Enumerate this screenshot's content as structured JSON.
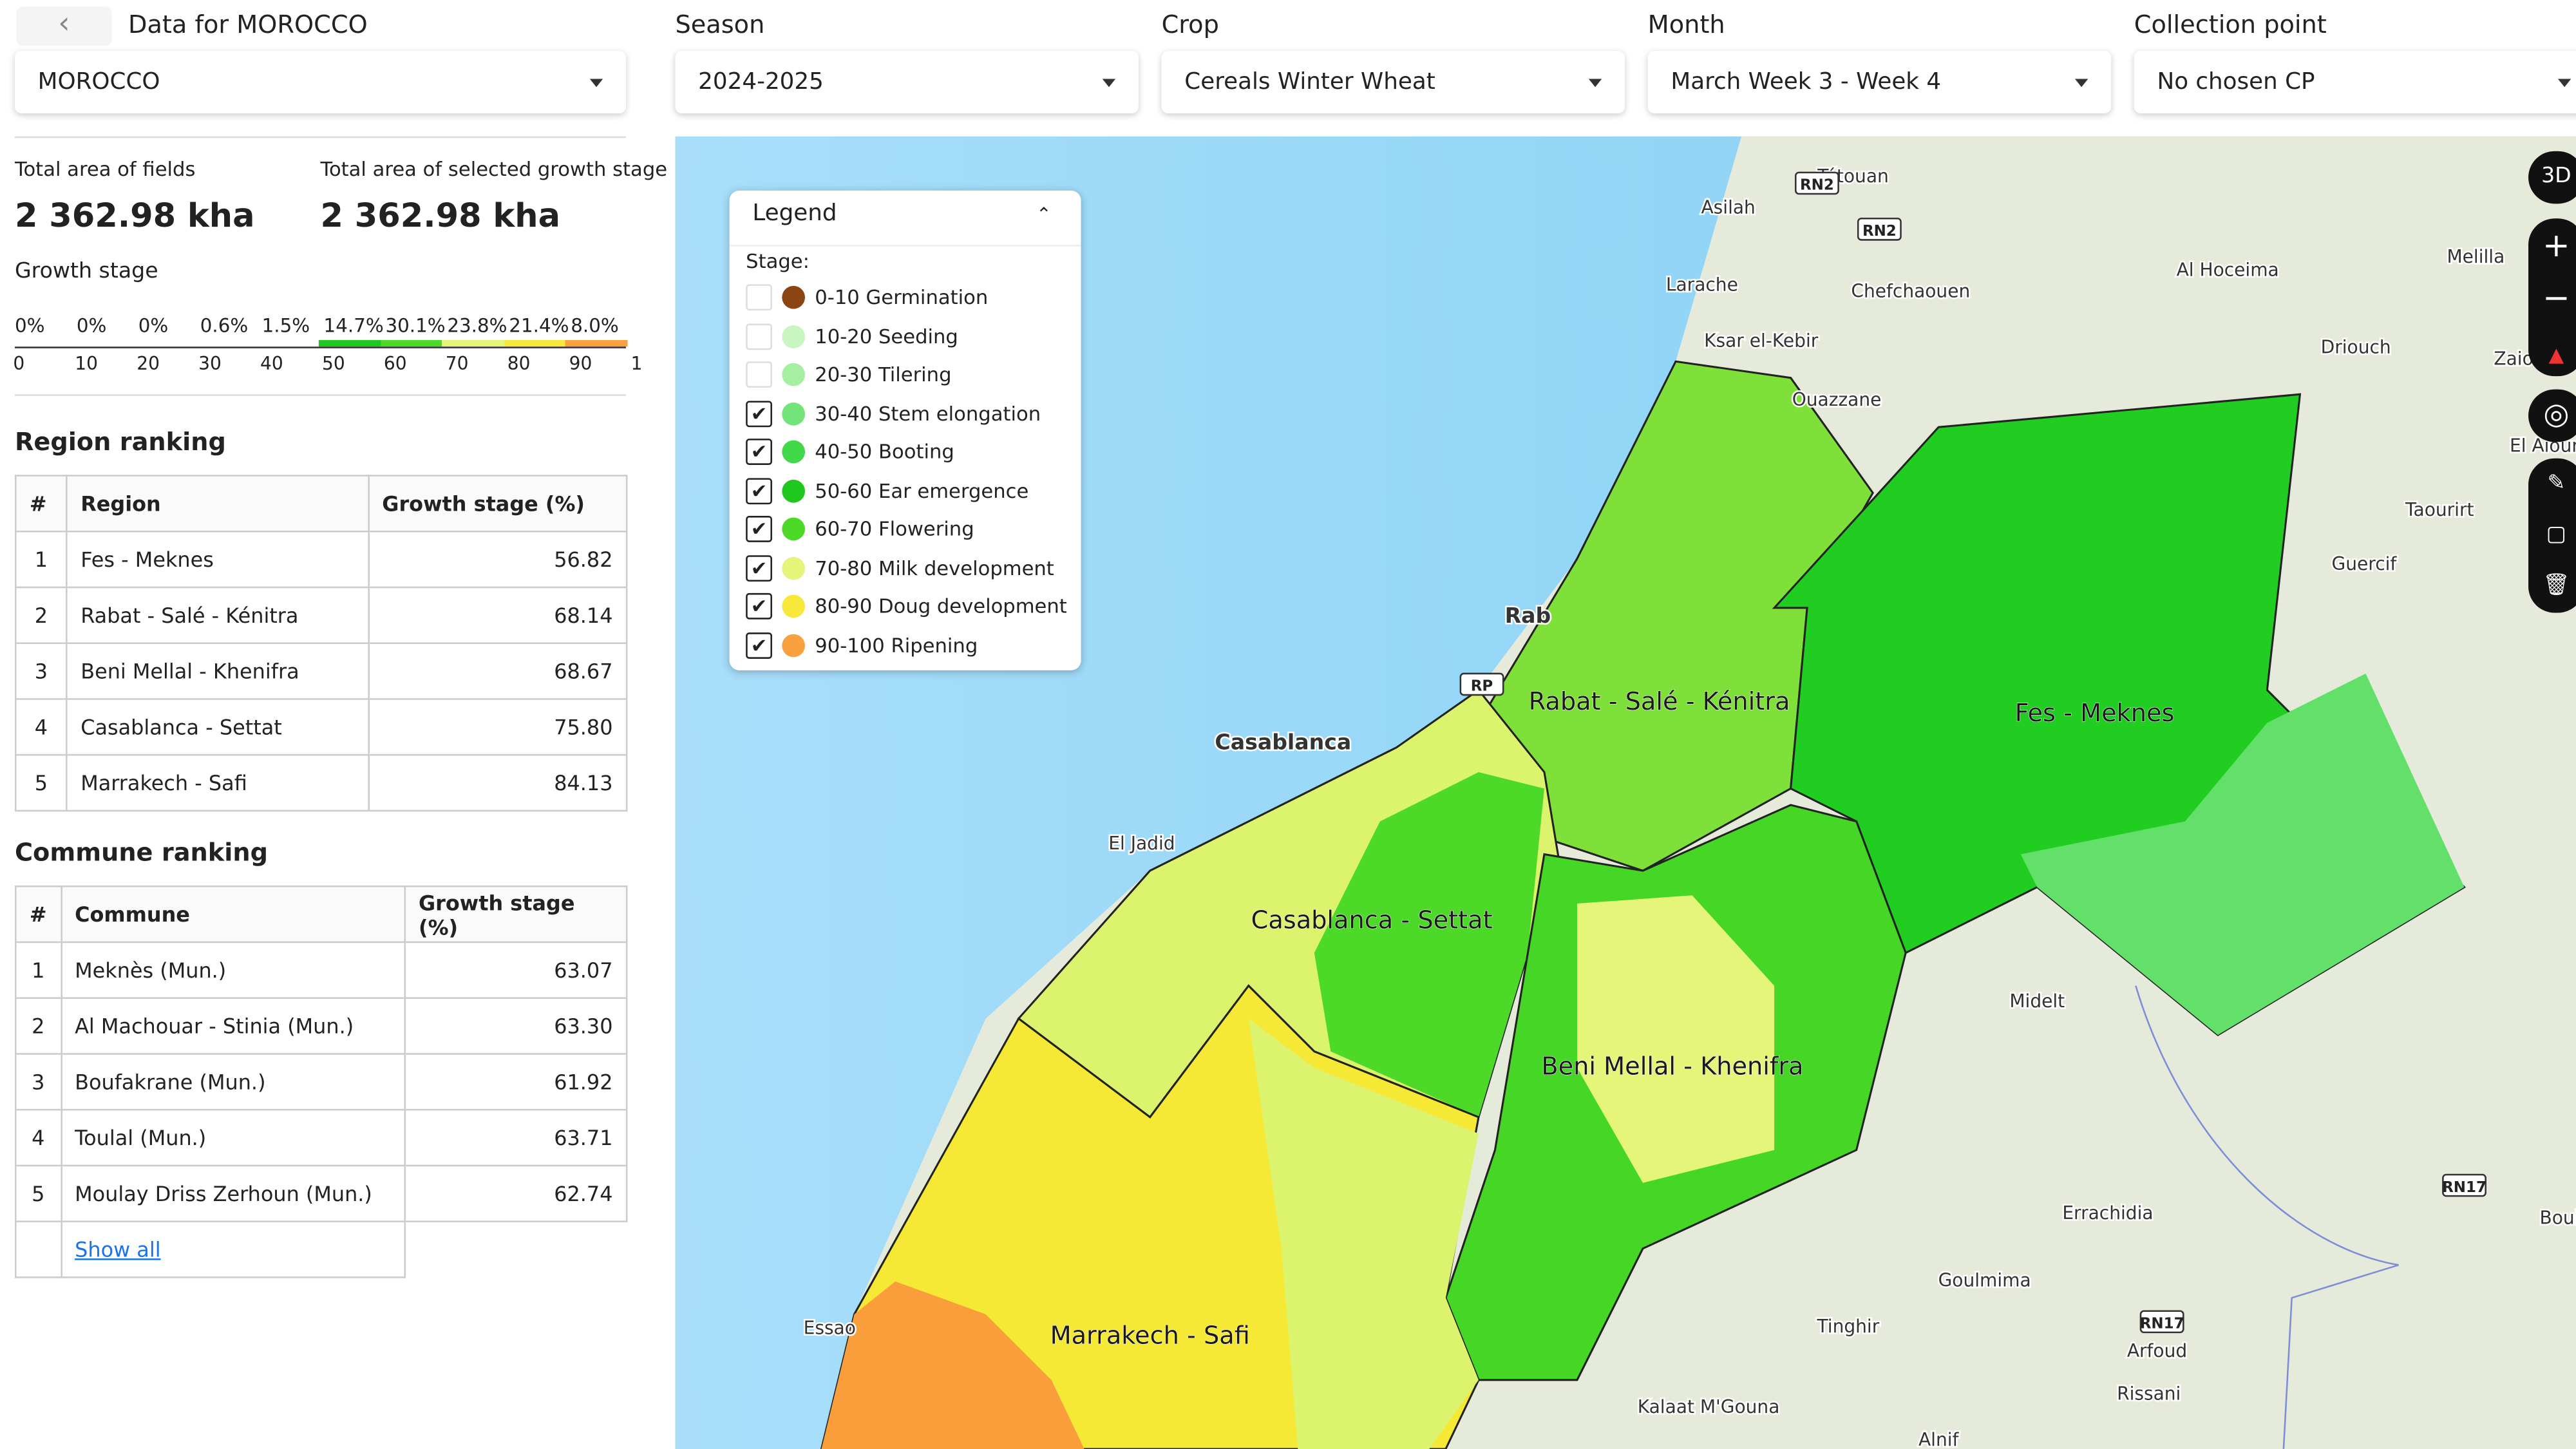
{
  "header": {
    "title": "Data for MOROCCO"
  },
  "country": "MOROCCO",
  "filters": [
    {
      "label": "Season",
      "value": "2024-2025"
    },
    {
      "label": "Crop",
      "value": "Cereals Winter Wheat"
    },
    {
      "label": "Month",
      "value": "March Week 3 - Week 4"
    },
    {
      "label": "Collection point",
      "value": "No chosen CP"
    }
  ],
  "stats": [
    {
      "label": "Total area of fields",
      "value": "2 362.98 kha"
    },
    {
      "label": "Total area of selected growth stage",
      "value": "2 362.98 kha"
    }
  ],
  "growth_stage": {
    "title": "Growth stage",
    "percentages": [
      "0%",
      "0%",
      "0%",
      "0.6%",
      "1.5%",
      "14.7%",
      "30.1%",
      "23.8%",
      "21.4%",
      "8.0%"
    ],
    "ticks": [
      "0",
      "10",
      "20",
      "30",
      "40",
      "50",
      "60",
      "70",
      "80",
      "90",
      "1"
    ]
  },
  "region_ranking": {
    "title": "Region ranking",
    "columns": [
      "#",
      "Region",
      "Growth stage (%)"
    ],
    "rows": [
      [
        "1",
        "Fes - Meknes",
        "56.82"
      ],
      [
        "2",
        "Rabat - Salé - Kénitra",
        "68.14"
      ],
      [
        "3",
        "Beni Mellal - Khenifra",
        "68.67"
      ],
      [
        "4",
        "Casablanca - Settat",
        "75.80"
      ],
      [
        "5",
        "Marrakech - Safi",
        "84.13"
      ]
    ]
  },
  "commune_ranking": {
    "title": "Commune ranking",
    "columns": [
      "#",
      "Commune",
      "Growth stage (%)"
    ],
    "rows": [
      [
        "1",
        "Meknès (Mun.)",
        "63.07"
      ],
      [
        "2",
        "Al Machouar - Stinia (Mun.)",
        "63.30"
      ],
      [
        "3",
        "Boufakrane (Mun.)",
        "61.92"
      ],
      [
        "4",
        "Toulal (Mun.)",
        "63.71"
      ],
      [
        "5",
        "Moulay Driss Zerhoun (Mun.)",
        "62.74"
      ]
    ],
    "show_all": "Show all"
  },
  "legend": {
    "title": "Legend",
    "stage_label": "Stage:",
    "items": [
      {
        "label": "0-10 Germination",
        "checked": false,
        "color": "#8b4513"
      },
      {
        "label": "10-20 Seeding",
        "checked": false,
        "color": "#c8f5c0"
      },
      {
        "label": "20-30 Tilering",
        "checked": false,
        "color": "#a6eea0"
      },
      {
        "label": "30-40 Stem elongation",
        "checked": true,
        "color": "#72e47a"
      },
      {
        "label": "40-50 Booting",
        "checked": true,
        "color": "#3fd94a"
      },
      {
        "label": "50-60 Ear emergence",
        "checked": true,
        "color": "#1ec81e"
      },
      {
        "label": "60-70 Flowering",
        "checked": true,
        "color": "#4cd928"
      },
      {
        "label": "70-80 Milk development",
        "checked": true,
        "color": "#e4f57a"
      },
      {
        "label": "80-90 Doug development",
        "checked": true,
        "color": "#f7e83a"
      },
      {
        "label": "90-100 Ripening",
        "checked": true,
        "color": "#f9a03f"
      }
    ]
  },
  "map": {
    "regions": [
      "Rabat - Salé - Kénitra",
      "Fes - Meknes",
      "Casablanca - Settat",
      "Beni Mellal - Khenifra",
      "Marrakech - Safi"
    ],
    "places": [
      "Tétouan",
      "Asilah",
      "Larache",
      "Chefchaouen",
      "Ksar el-Kebir",
      "Ouazzane",
      "Al Hoceima",
      "Melilla",
      "Driouch",
      "Zaio",
      "El Aioun",
      "Taourirt",
      "Guercif",
      "Rab",
      "Casablanca",
      "El Jadid",
      "Midelt",
      "Errachidia",
      "Goulmima",
      "Arfoud",
      "Rissani",
      "Tinghir",
      "Kalaat M'Gouna",
      "Alnif",
      "Essao",
      "Boul"
    ],
    "roads": [
      "RN2",
      "RN2",
      "RN17",
      "RN17",
      "RP"
    ],
    "control_3d": "3D"
  }
}
